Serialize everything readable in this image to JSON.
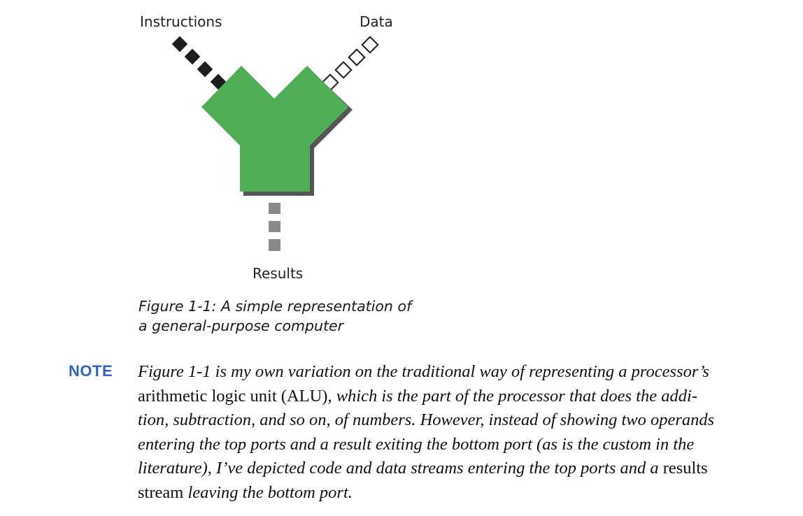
{
  "figure": {
    "labels": {
      "instructions": "Instructions",
      "data": "Data",
      "results": "Results"
    },
    "colors": {
      "alu_fill": "#4fae55",
      "alu_shadow": "#555555",
      "instruction_stream": "#1e1e1e",
      "data_stream_outline": "#1e1e1e",
      "results_stream": "#8a8a8a"
    },
    "caption_lines": [
      "Figure 1-1: A simple representation of",
      "a general-purpose computer"
    ]
  },
  "note": {
    "label": "NOTE",
    "lines": [
      [
        {
          "text": "Figure 1-1 is my own variation on the traditional way of representing a processor’s",
          "style": "italic"
        }
      ],
      [
        {
          "text": "arithmetic logic unit (ALU)",
          "style": "roman"
        },
        {
          "text": ", which is the part of the processor that does the addi-",
          "style": "italic"
        }
      ],
      [
        {
          "text": "tion, subtraction, and so on, of numbers. However, instead of showing two operands",
          "style": "italic"
        }
      ],
      [
        {
          "text": "entering the top ports and a result exiting the bottom port (as is the custom in the",
          "style": "italic"
        }
      ],
      [
        {
          "text": "literature), I’ve depicted code and data streams entering the top ports and a ",
          "style": "italic"
        },
        {
          "text": "results",
          "style": "roman"
        }
      ],
      [
        {
          "text": "stream",
          "style": "roman"
        },
        {
          "text": " leaving the bottom port.",
          "style": "italic"
        }
      ]
    ]
  }
}
